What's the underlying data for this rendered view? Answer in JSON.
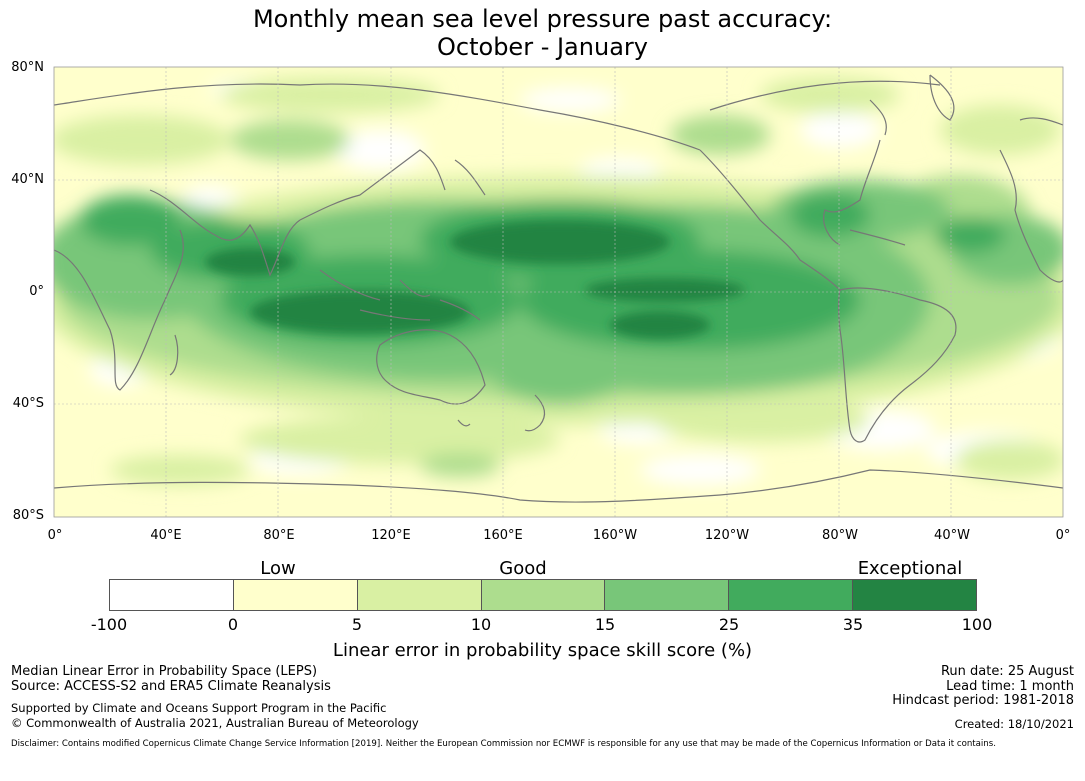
{
  "title_line1": "Monthly mean sea level pressure past accuracy:",
  "title_line2": "October - January",
  "lat_labels": [
    "80°N",
    "40°N",
    "0°",
    "40°S",
    "80°S"
  ],
  "lon_labels": [
    "0°",
    "40°E",
    "80°E",
    "120°E",
    "160°E",
    "160°W",
    "120°W",
    "80°W",
    "40°W",
    "0°"
  ],
  "category_labels": {
    "low": "Low",
    "good": "Good",
    "exceptional": "Exceptional"
  },
  "colorbar": {
    "colors": [
      "#ffffff",
      "#ffffcc",
      "#d9f0a3",
      "#addd8e",
      "#78c679",
      "#41ab5d",
      "#238443"
    ],
    "ticks": [
      "-100",
      "0",
      "5",
      "10",
      "15",
      "25",
      "35",
      "100"
    ],
    "title": "Linear error in probability space skill score (%)"
  },
  "footer": {
    "left_line1": "Median Linear Error in Probability Space (LEPS)",
    "left_line2": "Source: ACCESS-S2 and ERA5 Climate Reanalysis",
    "left_line3": "Supported by Climate and Oceans Support Program in the Pacific",
    "left_line4": "© Commonwealth of Australia 2021, Australian Bureau of Meteorology",
    "run_date": "Run date: 25 August",
    "lead_time": "Lead time: 1 month",
    "hindcast": "Hindcast period: 1981-2018",
    "created": "Created: 18/10/2021",
    "disclaimer": "Disclaimer: Contains modified Copernicus Climate Change Service Information [2019]. Neither the European Commission nor ECMWF is responsible for any use that may be made of the Copernicus Information or Data it contains."
  },
  "map": {
    "projection": "equirectangular, centred 180°",
    "extent_lat": [
      -80,
      80
    ],
    "coastline_color": "#777777",
    "gridline_color": "#bbbbbb"
  }
}
